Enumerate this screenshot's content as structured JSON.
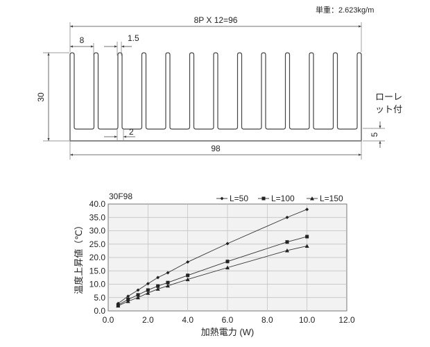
{
  "header": {
    "unit_weight": "単重：2.623kg/m"
  },
  "drawing": {
    "total_width_label": "8P X 12=96",
    "pitch_label": "8",
    "fin_thickness_label": "1.5",
    "fin_root_label": "2",
    "height_label": "30",
    "base_thickness_label": "5",
    "width_label": "98",
    "note_line1": "ローレ",
    "note_line2": "ット付",
    "fin_count": 13
  },
  "chart_data": {
    "type": "line",
    "title": "30F98",
    "xlabel": "加熱電力  (W)",
    "ylabel": "温度上昇値（℃）",
    "xlim": [
      0,
      12
    ],
    "ylim": [
      0,
      40
    ],
    "x_ticks": [
      "0.0",
      "2.0",
      "4.0",
      "6.0",
      "8.0",
      "10.0",
      "12.0"
    ],
    "y_ticks": [
      "0.0",
      "5.0",
      "10.0",
      "15.0",
      "20.0",
      "25.0",
      "30.0",
      "35.0",
      "40.0"
    ],
    "grid": true,
    "legend_position": "top",
    "series": [
      {
        "name": "L=50",
        "marker": "diamond",
        "x": [
          0.5,
          1.0,
          1.5,
          2.0,
          2.5,
          3.0,
          4.0,
          6.0,
          9.0,
          10.0
        ],
        "y": [
          2.8,
          5.5,
          7.8,
          10.2,
          12.5,
          14.3,
          18.3,
          25.2,
          35.0,
          38.0
        ]
      },
      {
        "name": "L=100",
        "marker": "square",
        "x": [
          0.5,
          1.0,
          1.5,
          2.0,
          2.5,
          3.0,
          4.0,
          6.0,
          9.0,
          10.0
        ],
        "y": [
          2.2,
          4.3,
          6.0,
          7.8,
          9.3,
          10.6,
          13.3,
          18.5,
          25.8,
          27.8
        ]
      },
      {
        "name": "L=150",
        "marker": "triangle",
        "x": [
          0.5,
          1.0,
          1.5,
          2.0,
          2.5,
          3.0,
          4.0,
          6.0,
          9.0,
          10.0
        ],
        "y": [
          1.9,
          3.6,
          5.0,
          6.7,
          8.2,
          9.4,
          11.8,
          16.2,
          22.6,
          24.3
        ]
      }
    ]
  }
}
